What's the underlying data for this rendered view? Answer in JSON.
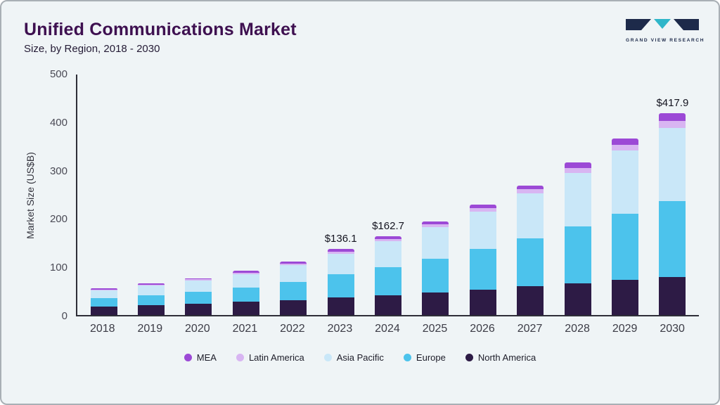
{
  "page": {
    "title": "Unified Communications Market",
    "subtitle": "Size, by Region, 2018 - 2030"
  },
  "logo": {
    "text": "GRAND VIEW RESEARCH",
    "mark_navy": "#1d2a4a",
    "mark_teal": "#2fb6c9"
  },
  "chart_data": {
    "type": "bar",
    "stacked": true,
    "title": "Unified Communications Market Size, by Region, 2018 - 2030",
    "xlabel": "",
    "ylabel": "Market Size (US$B)",
    "ylim": [
      0,
      500
    ],
    "yticks": [
      0,
      100,
      200,
      300,
      400,
      500
    ],
    "grid": false,
    "legend_position": "bottom",
    "categories": [
      "2018",
      "2019",
      "2020",
      "2021",
      "2022",
      "2023",
      "2024",
      "2025",
      "2026",
      "2027",
      "2028",
      "2029",
      "2030"
    ],
    "series": [
      {
        "name": "North America",
        "color": "#2d1b45",
        "values": [
          18,
          20,
          23,
          27,
          31,
          36,
          40,
          46,
          52,
          60,
          65,
          72,
          78
        ]
      },
      {
        "name": "Europe",
        "color": "#4cc3ec",
        "values": [
          17,
          21,
          25,
          30,
          37,
          48,
          59,
          71,
          84,
          98,
          118,
          138,
          158
        ]
      },
      {
        "name": "Asia Pacific",
        "color": "#c9e7f8",
        "values": [
          16,
          20,
          23,
          28,
          35,
          43,
          53,
          64,
          78,
          94,
          110,
          130,
          150
        ]
      },
      {
        "name": "Latin America",
        "color": "#d8b5f2",
        "values": [
          2,
          2,
          2.5,
          3,
          3.5,
          4.5,
          5.3,
          6,
          7,
          8,
          11,
          12,
          15
        ]
      },
      {
        "name": "MEA",
        "color": "#9c49d6",
        "values": [
          2,
          2,
          2.5,
          3,
          3.5,
          4.6,
          5.4,
          6,
          7,
          8,
          11,
          13,
          16.9
        ]
      }
    ],
    "totals": [
      55,
      65,
      76,
      91,
      110,
      136.1,
      162.7,
      193,
      228,
      268,
      315,
      365,
      417.9
    ],
    "annotations": [
      {
        "category": "2023",
        "label": "$136.1"
      },
      {
        "category": "2024",
        "label": "$162.7"
      },
      {
        "category": "2030",
        "label": "$417.9"
      }
    ],
    "legend": [
      "MEA",
      "Latin America",
      "Asia Pacific",
      "Europe",
      "North America"
    ]
  }
}
